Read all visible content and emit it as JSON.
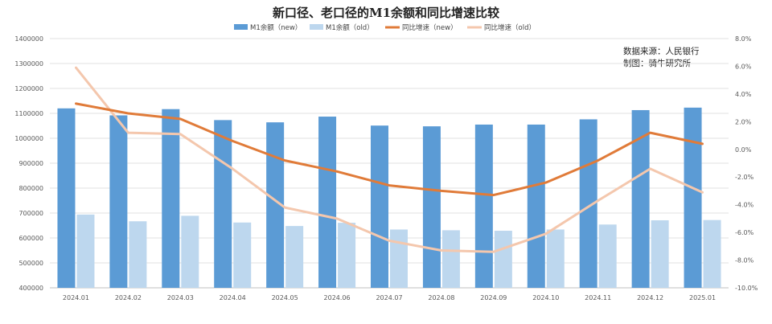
{
  "colors": {
    "bar_new": "#5b9bd5",
    "bar_old": "#bdd7ee",
    "line_new": "#e07b39",
    "line_old": "#f4c7ad",
    "grid": "#d9d9d9",
    "axis": "#bfbfbf"
  },
  "chart_data": {
    "type": "bar",
    "title": "新口径、老口径的M1余额和同比增速比较",
    "annotations": [
      "数据来源：人民银行",
      "制图：骑牛研究所"
    ],
    "categories": [
      "2024.01",
      "2024.02",
      "2024.03",
      "2024.04",
      "2024.05",
      "2024.06",
      "2024.07",
      "2024.08",
      "2024.09",
      "2024.10",
      "2024.11",
      "2024.12",
      "2025.01"
    ],
    "left_axis": {
      "ylim": [
        400000,
        1400000
      ],
      "ticks": [
        "400000",
        "500000",
        "600000",
        "700000",
        "800000",
        "900000",
        "1000000",
        "1100000",
        "1200000",
        "1300000",
        "1400000"
      ]
    },
    "right_axis": {
      "ylim": [
        -10,
        8
      ],
      "ticks": [
        "-10.0%",
        "-8.0%",
        "-6.0%",
        "-4.0%",
        "-2.0%",
        "0.0%",
        "2.0%",
        "4.0%",
        "6.0%",
        "8.0%"
      ]
    },
    "grid": true,
    "legend_position": "top",
    "series": [
      {
        "name": "M1余额（new）",
        "type": "bar",
        "axis": "left",
        "values": [
          1120000,
          1092000,
          1117000,
          1073000,
          1064000,
          1087000,
          1051000,
          1048000,
          1055000,
          1055000,
          1076000,
          1113000,
          1123000
        ]
      },
      {
        "name": "M1余额（old）",
        "type": "bar",
        "axis": "left",
        "values": [
          694000,
          667000,
          689000,
          662000,
          648000,
          661000,
          634000,
          631000,
          629000,
          634000,
          654000,
          671000,
          672000
        ]
      },
      {
        "name": "同比增速（new）",
        "type": "line",
        "axis": "right",
        "values": [
          3.3,
          2.6,
          2.2,
          0.6,
          -0.8,
          -1.6,
          -2.6,
          -3.0,
          -3.3,
          -2.4,
          -0.8,
          1.2,
          0.4
        ]
      },
      {
        "name": "同比增速（old）",
        "type": "line",
        "axis": "right",
        "values": [
          5.9,
          1.2,
          1.1,
          -1.4,
          -4.2,
          -5.0,
          -6.6,
          -7.3,
          -7.4,
          -6.1,
          -3.7,
          -1.4,
          -3.1
        ]
      }
    ]
  }
}
